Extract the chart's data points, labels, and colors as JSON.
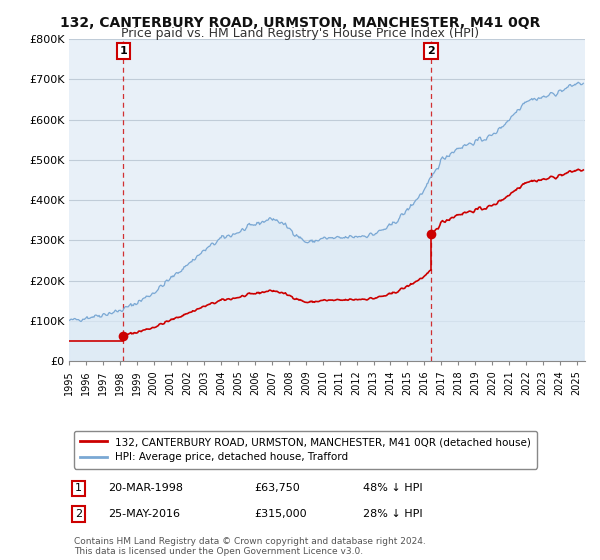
{
  "title": "132, CANTERBURY ROAD, URMSTON, MANCHESTER, M41 0QR",
  "subtitle": "Price paid vs. HM Land Registry's House Price Index (HPI)",
  "ylim": [
    0,
    800000
  ],
  "yticks": [
    0,
    100000,
    200000,
    300000,
    400000,
    500000,
    600000,
    700000,
    800000
  ],
  "ytick_labels": [
    "£0",
    "£100K",
    "£200K",
    "£300K",
    "£400K",
    "£500K",
    "£600K",
    "£700K",
    "£800K"
  ],
  "xmin": 1995.0,
  "xmax": 2025.5,
  "xticks": [
    1995,
    1996,
    1997,
    1998,
    1999,
    2000,
    2001,
    2002,
    2003,
    2004,
    2005,
    2006,
    2007,
    2008,
    2009,
    2010,
    2011,
    2012,
    2013,
    2014,
    2015,
    2016,
    2017,
    2018,
    2019,
    2020,
    2021,
    2022,
    2023,
    2024,
    2025
  ],
  "sale1_x": 1998.22,
  "sale1_y": 63750,
  "sale2_x": 2016.4,
  "sale2_y": 315000,
  "sale_color": "#cc0000",
  "hpi_color": "#7aa8d4",
  "hpi_fill_color": "#dce9f5",
  "plot_bg_color": "#e8f0f8",
  "annotation1_label": "1",
  "annotation2_label": "2",
  "legend_line1": "132, CANTERBURY ROAD, URMSTON, MANCHESTER, M41 0QR (detached house)",
  "legend_line2": "HPI: Average price, detached house, Trafford",
  "note1_label": "1",
  "note1_date": "20-MAR-1998",
  "note1_price": "£63,750",
  "note1_hpi": "48% ↓ HPI",
  "note2_label": "2",
  "note2_date": "25-MAY-2016",
  "note2_price": "£315,000",
  "note2_hpi": "28% ↓ HPI",
  "footnote": "Contains HM Land Registry data © Crown copyright and database right 2024.\nThis data is licensed under the Open Government Licence v3.0.",
  "bg_color": "#ffffff",
  "grid_color": "#c0ccd8",
  "title_fontsize": 10,
  "subtitle_fontsize": 9
}
